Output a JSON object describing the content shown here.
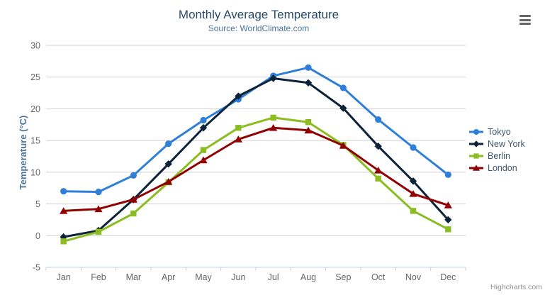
{
  "chart": {
    "title": "Monthly Average Temperature",
    "subtitle": "Source: WorldClimate.com",
    "y_axis_title": "Temperature (°C)",
    "credits": "Highcharts.com"
  },
  "icons": {
    "export_menu": "hamburger-icon"
  },
  "colors": {
    "title": "#274b6d",
    "subtitle": "#4d759e",
    "axis_label": "#666666",
    "axis_title": "#4d759e",
    "grid": "#d0d0d0",
    "axis_line": "#c0d0e0",
    "legend_text": "#3e576f",
    "credits": "#909090",
    "menu_icon": "#666666"
  },
  "chart_data": {
    "type": "line",
    "title": "Monthly Average Temperature",
    "subtitle": "Source: WorldClimate.com",
    "xlabel": "",
    "ylabel": "Temperature (°C)",
    "ylim": [
      -5,
      30
    ],
    "y_tick_interval": 5,
    "y_tick_labels": [
      -5,
      0,
      5,
      10,
      15,
      20,
      25,
      30
    ],
    "grid": true,
    "legend_position": "right",
    "categories": [
      "Jan",
      "Feb",
      "Mar",
      "Apr",
      "May",
      "Jun",
      "Jul",
      "Aug",
      "Sep",
      "Oct",
      "Nov",
      "Dec"
    ],
    "series": [
      {
        "name": "Tokyo",
        "color": "#2f7ed8",
        "marker": "circle",
        "values": [
          7.0,
          6.9,
          9.5,
          14.5,
          18.2,
          21.5,
          25.2,
          26.5,
          23.3,
          18.3,
          13.9,
          9.6
        ]
      },
      {
        "name": "New York",
        "color": "#0d233a",
        "marker": "diamond",
        "values": [
          -0.2,
          0.8,
          5.7,
          11.3,
          17.0,
          22.0,
          24.8,
          24.1,
          20.1,
          14.1,
          8.6,
          2.5
        ]
      },
      {
        "name": "Berlin",
        "color": "#8bbc21",
        "marker": "square",
        "values": [
          -0.9,
          0.6,
          3.5,
          8.4,
          13.5,
          17.0,
          18.6,
          17.9,
          14.3,
          9.0,
          3.9,
          1.0
        ]
      },
      {
        "name": "London",
        "color": "#910000",
        "marker": "triangle",
        "values": [
          3.9,
          4.2,
          5.7,
          8.5,
          11.9,
          15.2,
          17.0,
          16.6,
          14.2,
          10.3,
          6.6,
          4.8
        ]
      }
    ]
  }
}
